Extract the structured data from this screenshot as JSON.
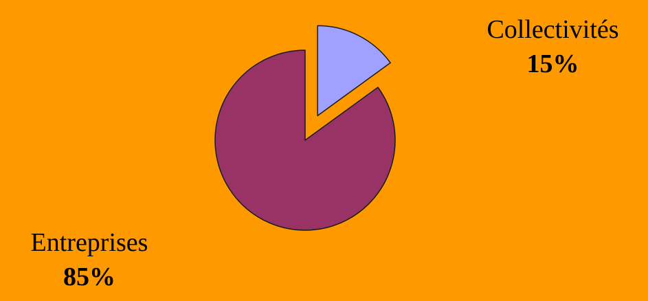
{
  "colors": {
    "background": "#ff9900",
    "outline": "#1a1a1a"
  },
  "chart_data": {
    "type": "pie",
    "title": "",
    "slices": [
      {
        "label": "Collectivités",
        "value": 15,
        "value_label": "15%",
        "color": "#a0a0ff",
        "exploded": true
      },
      {
        "label": "Entreprises",
        "value": 85,
        "value_label": "85%",
        "color": "#993366",
        "exploded": false
      }
    ],
    "start_angle": "12 o'clock",
    "direction": "clockwise",
    "legend": "none"
  }
}
